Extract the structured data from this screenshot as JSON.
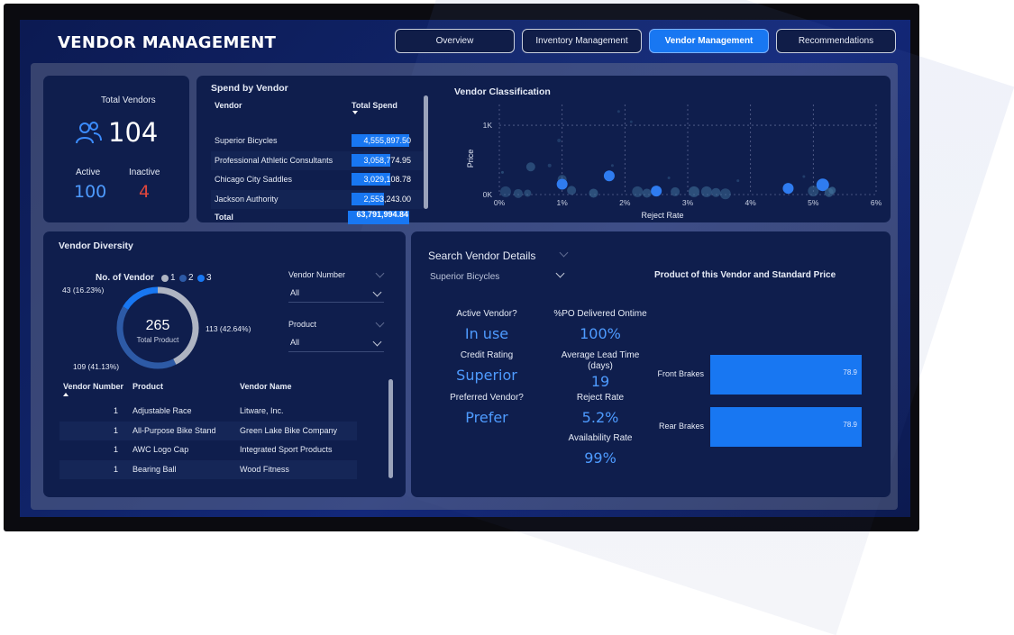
{
  "header": {
    "title": "VENDOR MANAGEMENT"
  },
  "nav": [
    {
      "label": "Overview",
      "active": false
    },
    {
      "label": "Inventory Management",
      "active": false
    },
    {
      "label": "Vendor Management",
      "active": true
    },
    {
      "label": "Recommendations",
      "active": false
    }
  ],
  "vendors_card": {
    "label": "Total Vendors",
    "total": "104",
    "active_label": "Active",
    "active_value": "100",
    "inactive_label": "Inactive",
    "inactive_value": "4",
    "icon": "users-icon"
  },
  "spend": {
    "title": "Spend by Vendor",
    "col_vendor": "Vendor",
    "col_total": "Total Spend",
    "rows": [
      {
        "vendor": "Superior Bicycles",
        "value": "4,555,897.50",
        "fill": 1.0
      },
      {
        "vendor": "Professional Athletic Consultants",
        "value": "3,058,774.95",
        "fill": 0.67
      },
      {
        "vendor": "Chicago City Saddles",
        "value": "3,029,108.78",
        "fill": 0.665
      },
      {
        "vendor": "Jackson Authority",
        "value": "2,553,243.00",
        "fill": 0.56
      }
    ],
    "total_label": "Total",
    "total_value": "63,791,994.84"
  },
  "chart_data": {
    "type": "scatter",
    "title": "Vendor Classification",
    "xlabel": "Reject Rate",
    "ylabel": "Price",
    "x_ticks": [
      "0%",
      "1%",
      "2%",
      "3%",
      "4%",
      "5%",
      "6%"
    ],
    "y_ticks": [
      "0K",
      "1K"
    ],
    "xlim": [
      0,
      6
    ],
    "ylim": [
      0,
      1300
    ],
    "points": [
      {
        "x": 0.05,
        "y": 320,
        "r": 1.5,
        "o": 0.5
      },
      {
        "x": 0.1,
        "y": 40,
        "r": 6,
        "o": 0.45
      },
      {
        "x": 0.3,
        "y": 15,
        "r": 5,
        "o": 0.5
      },
      {
        "x": 0.45,
        "y": 20,
        "r": 4,
        "o": 0.5
      },
      {
        "x": 0.8,
        "y": 420,
        "r": 2,
        "o": 0.4
      },
      {
        "x": 0.95,
        "y": 780,
        "r": 2,
        "o": 0.35
      },
      {
        "x": 1.0,
        "y": 220,
        "r": 5,
        "o": 0.5
      },
      {
        "x": 1.0,
        "y": 150,
        "r": 6,
        "o": 1.0
      },
      {
        "x": 1.15,
        "y": 60,
        "r": 5,
        "o": 0.55
      },
      {
        "x": 1.5,
        "y": 20,
        "r": 5,
        "o": 0.6
      },
      {
        "x": 0.5,
        "y": 400,
        "r": 5,
        "o": 0.55
      },
      {
        "x": 1.75,
        "y": 270,
        "r": 6,
        "o": 1.0
      },
      {
        "x": 1.8,
        "y": 420,
        "r": 1.5,
        "o": 0.4
      },
      {
        "x": 2.2,
        "y": 40,
        "r": 6,
        "o": 0.5
      },
      {
        "x": 2.35,
        "y": 20,
        "r": 5,
        "o": 0.55
      },
      {
        "x": 2.5,
        "y": 50,
        "r": 6,
        "o": 1.0
      },
      {
        "x": 2.7,
        "y": 240,
        "r": 1.5,
        "o": 0.4
      },
      {
        "x": 2.8,
        "y": 40,
        "r": 5,
        "o": 0.55
      },
      {
        "x": 3.1,
        "y": 40,
        "r": 6,
        "o": 0.6
      },
      {
        "x": 3.3,
        "y": 40,
        "r": 6,
        "o": 0.55
      },
      {
        "x": 3.45,
        "y": 30,
        "r": 5,
        "o": 0.55
      },
      {
        "x": 3.6,
        "y": 10,
        "r": 6,
        "o": 0.5
      },
      {
        "x": 3.8,
        "y": 200,
        "r": 1.5,
        "o": 0.4
      },
      {
        "x": 4.6,
        "y": 90,
        "r": 6,
        "o": 1.0
      },
      {
        "x": 4.85,
        "y": 260,
        "r": 1.5,
        "o": 0.4
      },
      {
        "x": 5.0,
        "y": 50,
        "r": 6,
        "o": 0.5
      },
      {
        "x": 5.15,
        "y": 140,
        "r": 7,
        "o": 1.0
      },
      {
        "x": 5.25,
        "y": 30,
        "r": 5,
        "o": 0.6
      },
      {
        "x": 5.3,
        "y": 60,
        "r": 4,
        "o": 0.7
      },
      {
        "x": 1.9,
        "y": 1200,
        "r": 1.5,
        "o": 0.35
      },
      {
        "x": 2.1,
        "y": 1050,
        "r": 1.5,
        "o": 0.35
      }
    ]
  },
  "diversity": {
    "title": "Vendor Diversity",
    "legend_title": "No. of Vendor",
    "legend": [
      {
        "label": "1",
        "color": "#aeb4c2"
      },
      {
        "label": "2",
        "color": "#2d5aa6"
      },
      {
        "label": "3",
        "color": "#1877f2"
      }
    ],
    "center_value": "265",
    "center_label": "Total Product",
    "donut": [
      {
        "label": "113 (42.64%)",
        "value": 113,
        "color": "#aeb4c2"
      },
      {
        "label": "109 (41.13%)",
        "value": 109,
        "color": "#2d5aa6"
      },
      {
        "label": "43 (16.23%)",
        "value": 43,
        "color": "#1877f2"
      }
    ],
    "filter_vendor_label": "Vendor Number",
    "filter_vendor_value": "All",
    "filter_product_label": "Product",
    "filter_product_value": "All",
    "table": {
      "headers": [
        "Vendor Number",
        "Product",
        "Vendor Name"
      ],
      "rows": [
        {
          "num": "1",
          "product": "Adjustable Race",
          "vendor": "Litware, Inc."
        },
        {
          "num": "1",
          "product": "All-Purpose Bike Stand",
          "vendor": "Green Lake Bike Company"
        },
        {
          "num": "1",
          "product": "AWC Logo Cap",
          "vendor": "Integrated Sport Products"
        },
        {
          "num": "1",
          "product": "Bearing Ball",
          "vendor": "Wood Fitness"
        }
      ]
    }
  },
  "details": {
    "title": "Search Vendor Details",
    "selected_vendor": "Superior Bicycles",
    "active_label": "Active Vendor?",
    "active_value": "In use",
    "credit_label": "Credit Rating",
    "credit_value": "Superior",
    "preferred_label": "Preferred Vendor?",
    "preferred_value": "Prefer",
    "ontime_label": "%PO Delivered Ontime",
    "ontime_value": "100%",
    "lead_label_1": "Average Lead Time",
    "lead_label_2": "(days)",
    "lead_value": "19",
    "reject_label": "Reject Rate",
    "reject_value": "5.2%",
    "avail_label": "Availability Rate",
    "avail_value": "99%",
    "product_chart_title": "Product of this Vendor and Standard Price",
    "products": [
      {
        "name": "Front Brakes",
        "price": "78.9",
        "value": 78.9
      },
      {
        "name": "Rear Brakes",
        "price": "78.9",
        "value": 78.9
      }
    ]
  }
}
